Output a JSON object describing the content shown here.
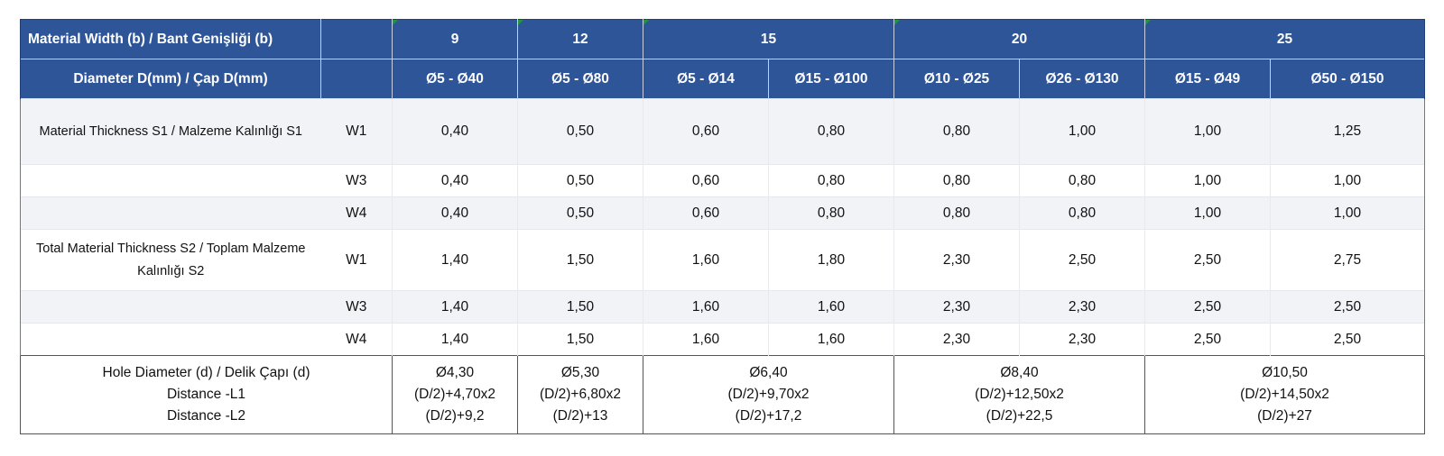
{
  "header": {
    "width_label": "Material Width (b) / Bant Genişliği (b)",
    "widths": [
      "9",
      "12",
      "15",
      "20",
      "25"
    ],
    "diameter_label": "Diameter D(mm) / Çap D(mm)",
    "diameters": [
      "Ø5 - Ø40",
      "Ø5 - Ø80",
      "Ø5 - Ø14",
      "Ø15 - Ø100",
      "Ø10 - Ø25",
      "Ø26 - Ø130",
      "Ø15 - Ø49",
      "Ø50 - Ø150"
    ]
  },
  "rows": [
    {
      "label": "Material Thickness S1 / Malzeme Kalınlığı S1",
      "type": "W1",
      "values": [
        "0,40",
        "0,50",
        "0,60",
        "0,80",
        "0,80",
        "1,00",
        "1,00",
        "1,25"
      ]
    },
    {
      "label": "",
      "type": "W3",
      "values": [
        "0,40",
        "0,50",
        "0,60",
        "0,80",
        "0,80",
        "0,80",
        "1,00",
        "1,00"
      ]
    },
    {
      "label": "",
      "type": "W4",
      "values": [
        "0,40",
        "0,50",
        "0,60",
        "0,80",
        "0,80",
        "0,80",
        "1,00",
        "1,00"
      ]
    },
    {
      "label": "Total Material Thickness S2 / Toplam Malzeme Kalınlığı S2",
      "type": "W1",
      "values": [
        "1,40",
        "1,50",
        "1,60",
        "1,80",
        "2,30",
        "2,50",
        "2,50",
        "2,75"
      ]
    },
    {
      "label": "",
      "type": "W3",
      "values": [
        "1,40",
        "1,50",
        "1,60",
        "1,60",
        "2,30",
        "2,30",
        "2,50",
        "2,50"
      ]
    },
    {
      "label": "",
      "type": "W4",
      "values": [
        "1,40",
        "1,50",
        "1,60",
        "1,60",
        "2,30",
        "2,30",
        "2,50",
        "2,50"
      ]
    }
  ],
  "hole": {
    "labels": [
      "Hole Diameter (d) / Delik Çapı (d)",
      "Distance -L1",
      "Distance -L2"
    ],
    "groups": [
      {
        "d": "Ø4,30",
        "l1": "(D/2)+4,70x2",
        "l2": "(D/2)+9,2"
      },
      {
        "d": "Ø5,30",
        "l1": "(D/2)+6,80x2",
        "l2": "(D/2)+13"
      },
      {
        "d": "Ø6,40",
        "l1": "(D/2)+9,70x2",
        "l2": "(D/2)+17,2"
      },
      {
        "d": "Ø8,40",
        "l1": "(D/2)+12,50x2",
        "l2": "(D/2)+22,5"
      },
      {
        "d": "Ø10,50",
        "l1": "(D/2)+14,50x2",
        "l2": "(D/2)+27"
      }
    ]
  }
}
